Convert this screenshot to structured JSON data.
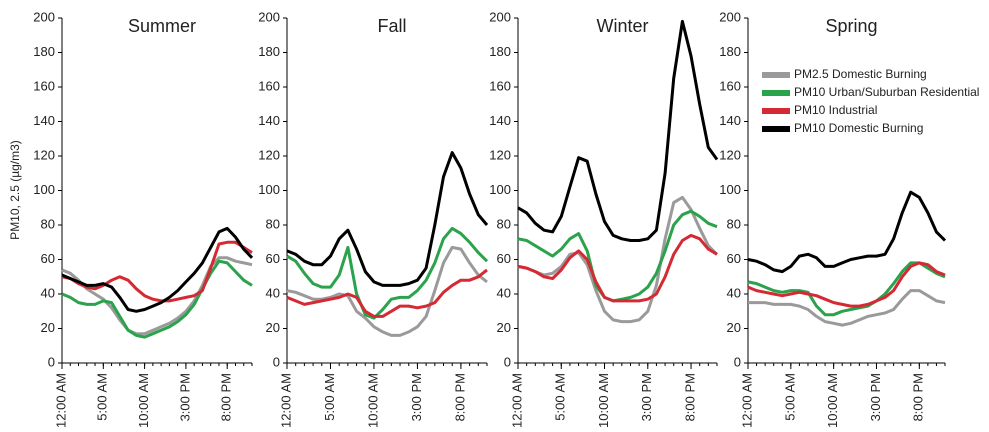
{
  "chart_data": [
    {
      "type": "line",
      "title": "Summer",
      "ylabel": "PM10, 2.5 (µg/m3)",
      "x": [
        0,
        1,
        2,
        3,
        4,
        5,
        6,
        7,
        8,
        9,
        10,
        11,
        12,
        13,
        14,
        15,
        16,
        17,
        18,
        19,
        20,
        21,
        22,
        23
      ],
      "xlim": [
        0,
        23
      ],
      "xticks": [
        {
          "value": 0,
          "label": "12:00 AM"
        },
        {
          "value": 5,
          "label": "5:00 AM"
        },
        {
          "value": 10,
          "label": "10:00 AM"
        },
        {
          "value": 15,
          "label": "3:00 PM"
        },
        {
          "value": 20,
          "label": "8:00 PM"
        }
      ],
      "ylim": [
        0,
        200
      ],
      "yticks": [
        0,
        20,
        40,
        60,
        80,
        100,
        120,
        140,
        160,
        180,
        200
      ],
      "series": [
        {
          "name": "PM2.5 Domestic Burning",
          "color": "#9a9a9a",
          "values": [
            54,
            52,
            48,
            43,
            40,
            37,
            32,
            25,
            19,
            17,
            17,
            19,
            21,
            23,
            26,
            30,
            36,
            45,
            56,
            61,
            61,
            59,
            58,
            57
          ]
        },
        {
          "name": "PM10 Urban/Suburban Residential",
          "color": "#2ba24c",
          "values": [
            40,
            38,
            35,
            34,
            34,
            36,
            35,
            27,
            19,
            16,
            15,
            17,
            19,
            21,
            24,
            28,
            34,
            43,
            52,
            59,
            58,
            53,
            48,
            45
          ]
        },
        {
          "name": "PM10 Industrial",
          "color": "#d42a34",
          "values": [
            50,
            49,
            46,
            44,
            43,
            45,
            48,
            50,
            48,
            43,
            39,
            37,
            36,
            36,
            37,
            38,
            39,
            42,
            55,
            69,
            70,
            70,
            67,
            64
          ]
        },
        {
          "name": "PM10 Domestic Burning",
          "color": "#000000",
          "values": [
            51,
            49,
            47,
            45,
            45,
            46,
            44,
            38,
            31,
            30,
            31,
            33,
            35,
            38,
            42,
            47,
            52,
            58,
            67,
            76,
            78,
            73,
            66,
            61
          ]
        }
      ]
    },
    {
      "type": "line",
      "title": "Fall",
      "x": [
        0,
        1,
        2,
        3,
        4,
        5,
        6,
        7,
        8,
        9,
        10,
        11,
        12,
        13,
        14,
        15,
        16,
        17,
        18,
        19,
        20,
        21,
        22,
        23
      ],
      "xlim": [
        0,
        23
      ],
      "xticks": [
        {
          "value": 0,
          "label": "12:00 AM"
        },
        {
          "value": 5,
          "label": "5:00 AM"
        },
        {
          "value": 10,
          "label": "10:00 AM"
        },
        {
          "value": 15,
          "label": "3:00 PM"
        },
        {
          "value": 20,
          "label": "8:00 PM"
        }
      ],
      "ylim": [
        0,
        200
      ],
      "yticks": [
        0,
        20,
        40,
        60,
        80,
        100,
        120,
        140,
        160,
        180,
        200
      ],
      "series": [
        {
          "name": "PM2.5 Domestic Burning",
          "color": "#9a9a9a",
          "values": [
            42,
            41,
            39,
            37,
            37,
            38,
            40,
            39,
            30,
            26,
            21,
            18,
            16,
            16,
            18,
            21,
            27,
            42,
            58,
            67,
            66,
            58,
            51,
            47
          ]
        },
        {
          "name": "PM10 Urban/Suburban Residential",
          "color": "#2ba24c",
          "values": [
            62,
            59,
            52,
            46,
            44,
            44,
            51,
            67,
            40,
            28,
            26,
            31,
            37,
            38,
            38,
            42,
            48,
            58,
            72,
            78,
            75,
            70,
            64,
            59
          ]
        },
        {
          "name": "PM10 Industrial",
          "color": "#d42a34",
          "values": [
            38,
            36,
            34,
            35,
            36,
            37,
            38,
            40,
            38,
            30,
            27,
            27,
            30,
            33,
            33,
            32,
            33,
            35,
            41,
            45,
            48,
            48,
            50,
            54
          ]
        },
        {
          "name": "PM10 Domestic Burning",
          "color": "#000000",
          "values": [
            65,
            63,
            59,
            57,
            57,
            62,
            72,
            77,
            66,
            53,
            47,
            45,
            45,
            45,
            46,
            48,
            55,
            80,
            108,
            122,
            113,
            98,
            86,
            80
          ]
        }
      ]
    },
    {
      "type": "line",
      "title": "Winter",
      "x": [
        0,
        1,
        2,
        3,
        4,
        5,
        6,
        7,
        8,
        9,
        10,
        11,
        12,
        13,
        14,
        15,
        16,
        17,
        18,
        19,
        20,
        21,
        22,
        23
      ],
      "xlim": [
        0,
        23
      ],
      "xticks": [
        {
          "value": 0,
          "label": "12:00 AM"
        },
        {
          "value": 5,
          "label": "5:00 AM"
        },
        {
          "value": 10,
          "label": "10:00 AM"
        },
        {
          "value": 15,
          "label": "3:00 PM"
        },
        {
          "value": 20,
          "label": "8:00 PM"
        }
      ],
      "ylim": [
        0,
        200
      ],
      "yticks": [
        0,
        20,
        40,
        60,
        80,
        100,
        120,
        140,
        160,
        180,
        200
      ],
      "series": [
        {
          "name": "PM2.5 Domestic Burning",
          "color": "#9a9a9a",
          "values": [
            56,
            55,
            53,
            51,
            52,
            56,
            63,
            64,
            57,
            42,
            30,
            25,
            24,
            24,
            25,
            30,
            45,
            72,
            93,
            96,
            89,
            78,
            68,
            63
          ]
        },
        {
          "name": "PM10 Urban/Suburban Residential",
          "color": "#2ba24c",
          "values": [
            72,
            71,
            68,
            65,
            62,
            66,
            72,
            75,
            65,
            45,
            38,
            36,
            37,
            38,
            40,
            44,
            52,
            65,
            80,
            86,
            88,
            85,
            81,
            79
          ]
        },
        {
          "name": "PM10 Industrial",
          "color": "#d42a34",
          "values": [
            56,
            55,
            53,
            50,
            49,
            54,
            61,
            65,
            60,
            47,
            38,
            36,
            36,
            36,
            36,
            37,
            40,
            50,
            63,
            71,
            74,
            72,
            66,
            63
          ]
        },
        {
          "name": "PM10 Domestic Burning",
          "color": "#000000",
          "values": [
            90,
            87,
            81,
            77,
            76,
            85,
            102,
            119,
            117,
            98,
            82,
            74,
            72,
            71,
            71,
            72,
            77,
            110,
            165,
            198,
            178,
            150,
            125,
            118
          ]
        }
      ]
    },
    {
      "type": "line",
      "title": "Spring",
      "legend": "upper right",
      "x": [
        0,
        1,
        2,
        3,
        4,
        5,
        6,
        7,
        8,
        9,
        10,
        11,
        12,
        13,
        14,
        15,
        16,
        17,
        18,
        19,
        20,
        21,
        22,
        23
      ],
      "xlim": [
        0,
        23
      ],
      "xticks": [
        {
          "value": 0,
          "label": "12:00 AM"
        },
        {
          "value": 5,
          "label": "5:00 AM"
        },
        {
          "value": 10,
          "label": "10:00 AM"
        },
        {
          "value": 15,
          "label": "3:00 PM"
        },
        {
          "value": 20,
          "label": "8:00 PM"
        }
      ],
      "ylim": [
        0,
        200
      ],
      "yticks": [
        0,
        20,
        40,
        60,
        80,
        100,
        120,
        140,
        160,
        180,
        200
      ],
      "series": [
        {
          "name": "PM2.5 Domestic Burning",
          "color": "#9a9a9a",
          "values": [
            35,
            35,
            35,
            34,
            34,
            34,
            33,
            31,
            27,
            24,
            23,
            22,
            23,
            25,
            27,
            28,
            29,
            31,
            37,
            42,
            42,
            39,
            36,
            35
          ]
        },
        {
          "name": "PM10 Urban/Suburban Residential",
          "color": "#2ba24c",
          "values": [
            47,
            46,
            44,
            42,
            41,
            42,
            42,
            41,
            33,
            28,
            28,
            30,
            31,
            32,
            33,
            36,
            40,
            46,
            53,
            58,
            58,
            55,
            52,
            50
          ]
        },
        {
          "name": "PM10 Industrial",
          "color": "#d42a34",
          "values": [
            44,
            42,
            41,
            40,
            39,
            40,
            41,
            40,
            39,
            37,
            35,
            34,
            33,
            33,
            34,
            36,
            38,
            42,
            50,
            56,
            58,
            57,
            53,
            51
          ]
        },
        {
          "name": "PM10 Domestic Burning",
          "color": "#000000",
          "values": [
            60,
            59,
            57,
            54,
            53,
            56,
            62,
            63,
            61,
            56,
            56,
            58,
            60,
            61,
            62,
            62,
            63,
            72,
            87,
            99,
            96,
            87,
            76,
            71
          ]
        }
      ]
    }
  ]
}
